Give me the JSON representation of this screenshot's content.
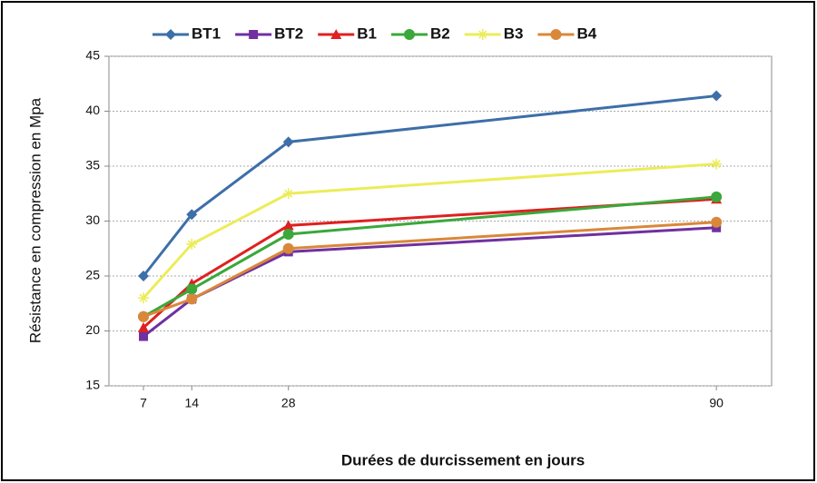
{
  "chart_data": {
    "type": "line",
    "x_label": "Durées de durcissement en jours",
    "y_label": "Résistance en compression en Mpa",
    "x": [
      7,
      14,
      28,
      90
    ],
    "xlim": [
      2,
      98
    ],
    "xticks": [
      7,
      14,
      28,
      90
    ],
    "ylim": [
      15,
      45
    ],
    "yticks": [
      15,
      20,
      25,
      30,
      35,
      40,
      45
    ],
    "grid": true,
    "legend": "top",
    "series": [
      {
        "name": "BT1",
        "color": "#3d6fa8",
        "marker": "diamond",
        "values": [
          25.0,
          30.6,
          37.2,
          41.4
        ]
      },
      {
        "name": "BT2",
        "color": "#7030a0",
        "marker": "square",
        "values": [
          19.5,
          22.9,
          27.2,
          29.4
        ]
      },
      {
        "name": "B1",
        "color": "#e02020",
        "marker": "triangle",
        "values": [
          20.3,
          24.3,
          29.6,
          32.0
        ]
      },
      {
        "name": "B2",
        "color": "#3aa83a",
        "marker": "circle",
        "values": [
          21.3,
          23.8,
          28.8,
          32.2
        ]
      },
      {
        "name": "B3",
        "color": "#ecec5a",
        "marker": "star",
        "values": [
          23.0,
          27.9,
          32.5,
          35.2
        ]
      },
      {
        "name": "B4",
        "color": "#d9883a",
        "marker": "circle",
        "values": [
          21.3,
          22.9,
          27.5,
          29.9
        ]
      }
    ]
  }
}
